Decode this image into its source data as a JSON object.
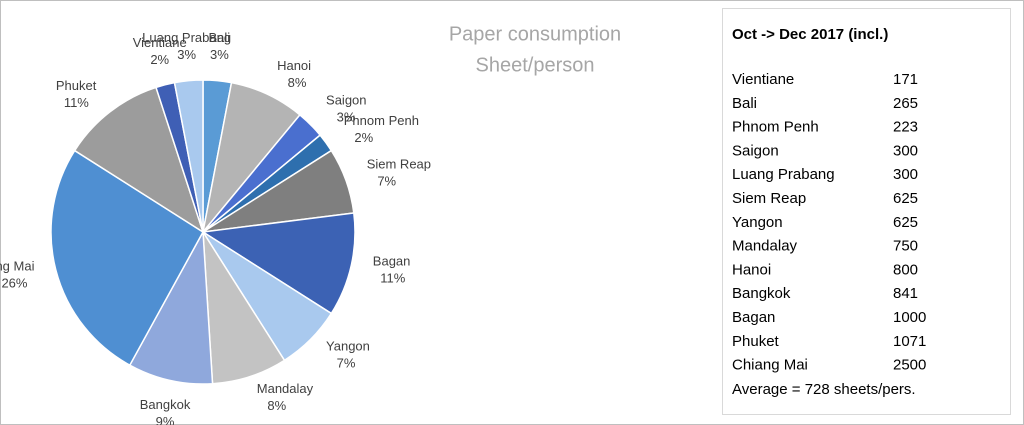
{
  "chart_data": {
    "type": "pie",
    "title": "Paper consumption",
    "subtitle": "Sheet/person",
    "categories": [
      "Bali",
      "Hanoi",
      "Saigon",
      "Phnom Penh",
      "Siem Reap",
      "Bagan",
      "Yangon",
      "Mandalay",
      "Bangkok",
      "Chiang Mai",
      "Phuket",
      "Vientiane",
      "Luang Prabang"
    ],
    "values": [
      3,
      8,
      3,
      2,
      7,
      11,
      7,
      8,
      9,
      26,
      11,
      2,
      3
    ],
    "value_labels": [
      "3%",
      "8%",
      "3%",
      "2%",
      "7%",
      "11%",
      "7%",
      "8%",
      "9%",
      "26%",
      "11%",
      "2%",
      "3%"
    ],
    "colors": [
      "#5a9bd5",
      "#b4b4b4",
      "#4a6fcf",
      "#2e6fae",
      "#7f7f7f",
      "#3c62b4",
      "#a9c9ee",
      "#c3c3c3",
      "#8fa8dc",
      "#4f8fd2",
      "#9c9c9c",
      "#3f5fb5",
      "#a9c9ee"
    ]
  },
  "table": {
    "title": "Oct -> Dec 2017 (incl.)",
    "rows": [
      [
        "Vientiane",
        171
      ],
      [
        "Bali",
        265
      ],
      [
        "Phnom Penh",
        223
      ],
      [
        "Saigon",
        300
      ],
      [
        "Luang Prabang",
        300
      ],
      [
        "Siem Reap",
        625
      ],
      [
        "Yangon",
        625
      ],
      [
        "Mandalay",
        750
      ],
      [
        "Hanoi",
        800
      ],
      [
        "Bangkok",
        841
      ],
      [
        "Bagan",
        1000
      ],
      [
        "Phuket",
        1071
      ],
      [
        "Chiang Mai",
        2500
      ]
    ],
    "footer": "Average = 728 sheets/pers."
  }
}
